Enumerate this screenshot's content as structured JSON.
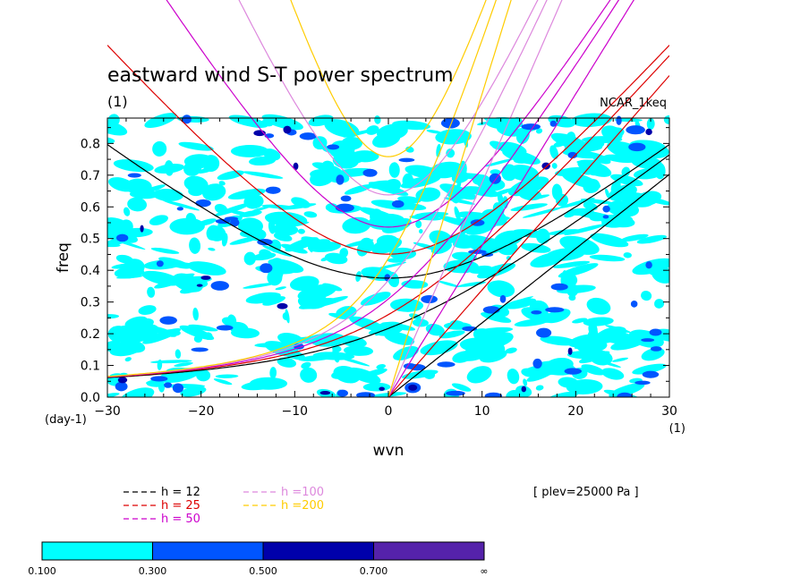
{
  "chart_data": {
    "type": "line",
    "title": "eastward wind S-T power spectrum",
    "subtitle": "(1)",
    "model_label": "NCAR_1keq",
    "xlabel": "wvn",
    "ylabel": "freq",
    "x_unit_label": "(1)",
    "y_unit_label": "(day-1)",
    "xlim": [
      -30,
      30
    ],
    "ylim": [
      0,
      0.88
    ],
    "xticks": [
      -30,
      -20,
      -10,
      0,
      10,
      20,
      30
    ],
    "yticks": [
      0.0,
      0.1,
      0.2,
      0.3,
      0.4,
      0.5,
      0.6,
      0.7,
      0.8
    ],
    "plev_label": "[ plev=25000 Pa ]",
    "contour_levels": [
      "0.100",
      "0.300",
      "0.500",
      "0.700",
      "∞"
    ],
    "contour_colors": [
      "#00ffff",
      "#0055ff",
      "#0000aa",
      "#5522aa"
    ],
    "series": [
      {
        "name": "h = 12",
        "depth_m": 12,
        "color": "#000000"
      },
      {
        "name": "h = 25",
        "depth_m": 25,
        "color": "#dd0000"
      },
      {
        "name": "h = 50",
        "depth_m": 50,
        "color": "#cc00cc"
      },
      {
        "name": "h =100",
        "depth_m": 100,
        "color": "#dd88dd"
      },
      {
        "name": "h =200",
        "depth_m": 200,
        "color": "#ffcc00"
      }
    ]
  }
}
